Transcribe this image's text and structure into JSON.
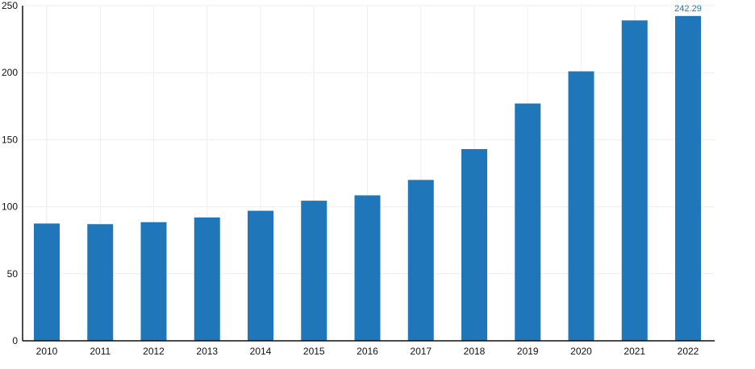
{
  "chart_data": {
    "type": "bar",
    "title": "",
    "xlabel": "",
    "ylabel": "",
    "categories": [
      "2010",
      "2011",
      "2012",
      "2013",
      "2014",
      "2015",
      "2016",
      "2017",
      "2018",
      "2019",
      "2020",
      "2021",
      "2022"
    ],
    "values": [
      87.5,
      87.0,
      88.5,
      92.0,
      97.0,
      104.5,
      108.5,
      120.0,
      143.0,
      177.0,
      201.0,
      239.0,
      242.29
    ],
    "ylim": [
      0,
      250
    ],
    "yticks": [
      "0",
      "50",
      "100",
      "150",
      "200",
      "250"
    ],
    "grid": true,
    "legend": "none",
    "data_labels": [
      {
        "category": "2022",
        "text": "242.29"
      }
    ],
    "colors": {
      "bar": "#1f77b9",
      "data_label": "#1f77b9",
      "grid": "#eeeeee",
      "axis": "#111111"
    }
  }
}
